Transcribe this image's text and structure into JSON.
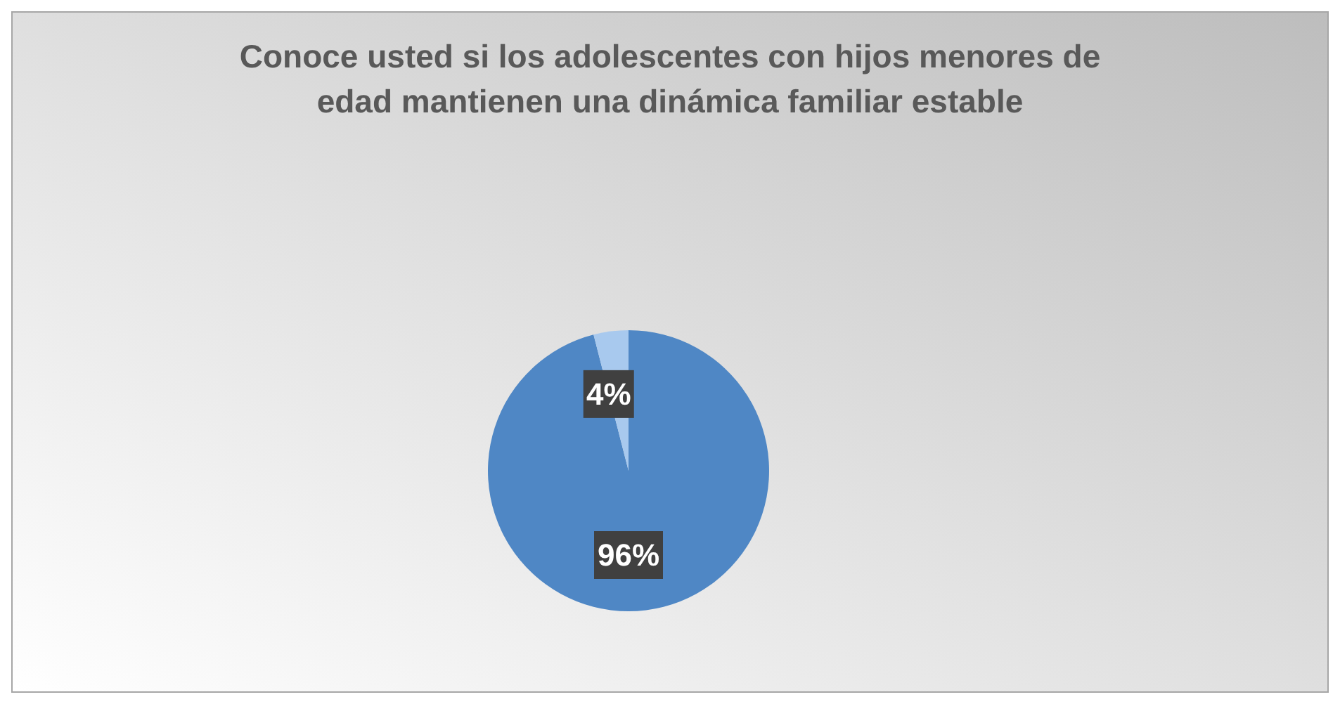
{
  "chart_data": {
    "type": "pie",
    "title": "Conoce usted si los adolescentes con hijos menores de edad mantienen una dinámica familiar estable",
    "categories": [
      null,
      null
    ],
    "values": [
      96,
      4
    ],
    "colors": [
      "#4f87c5",
      "#a8c9ee"
    ],
    "value_labels": [
      "96%",
      "4%"
    ]
  }
}
